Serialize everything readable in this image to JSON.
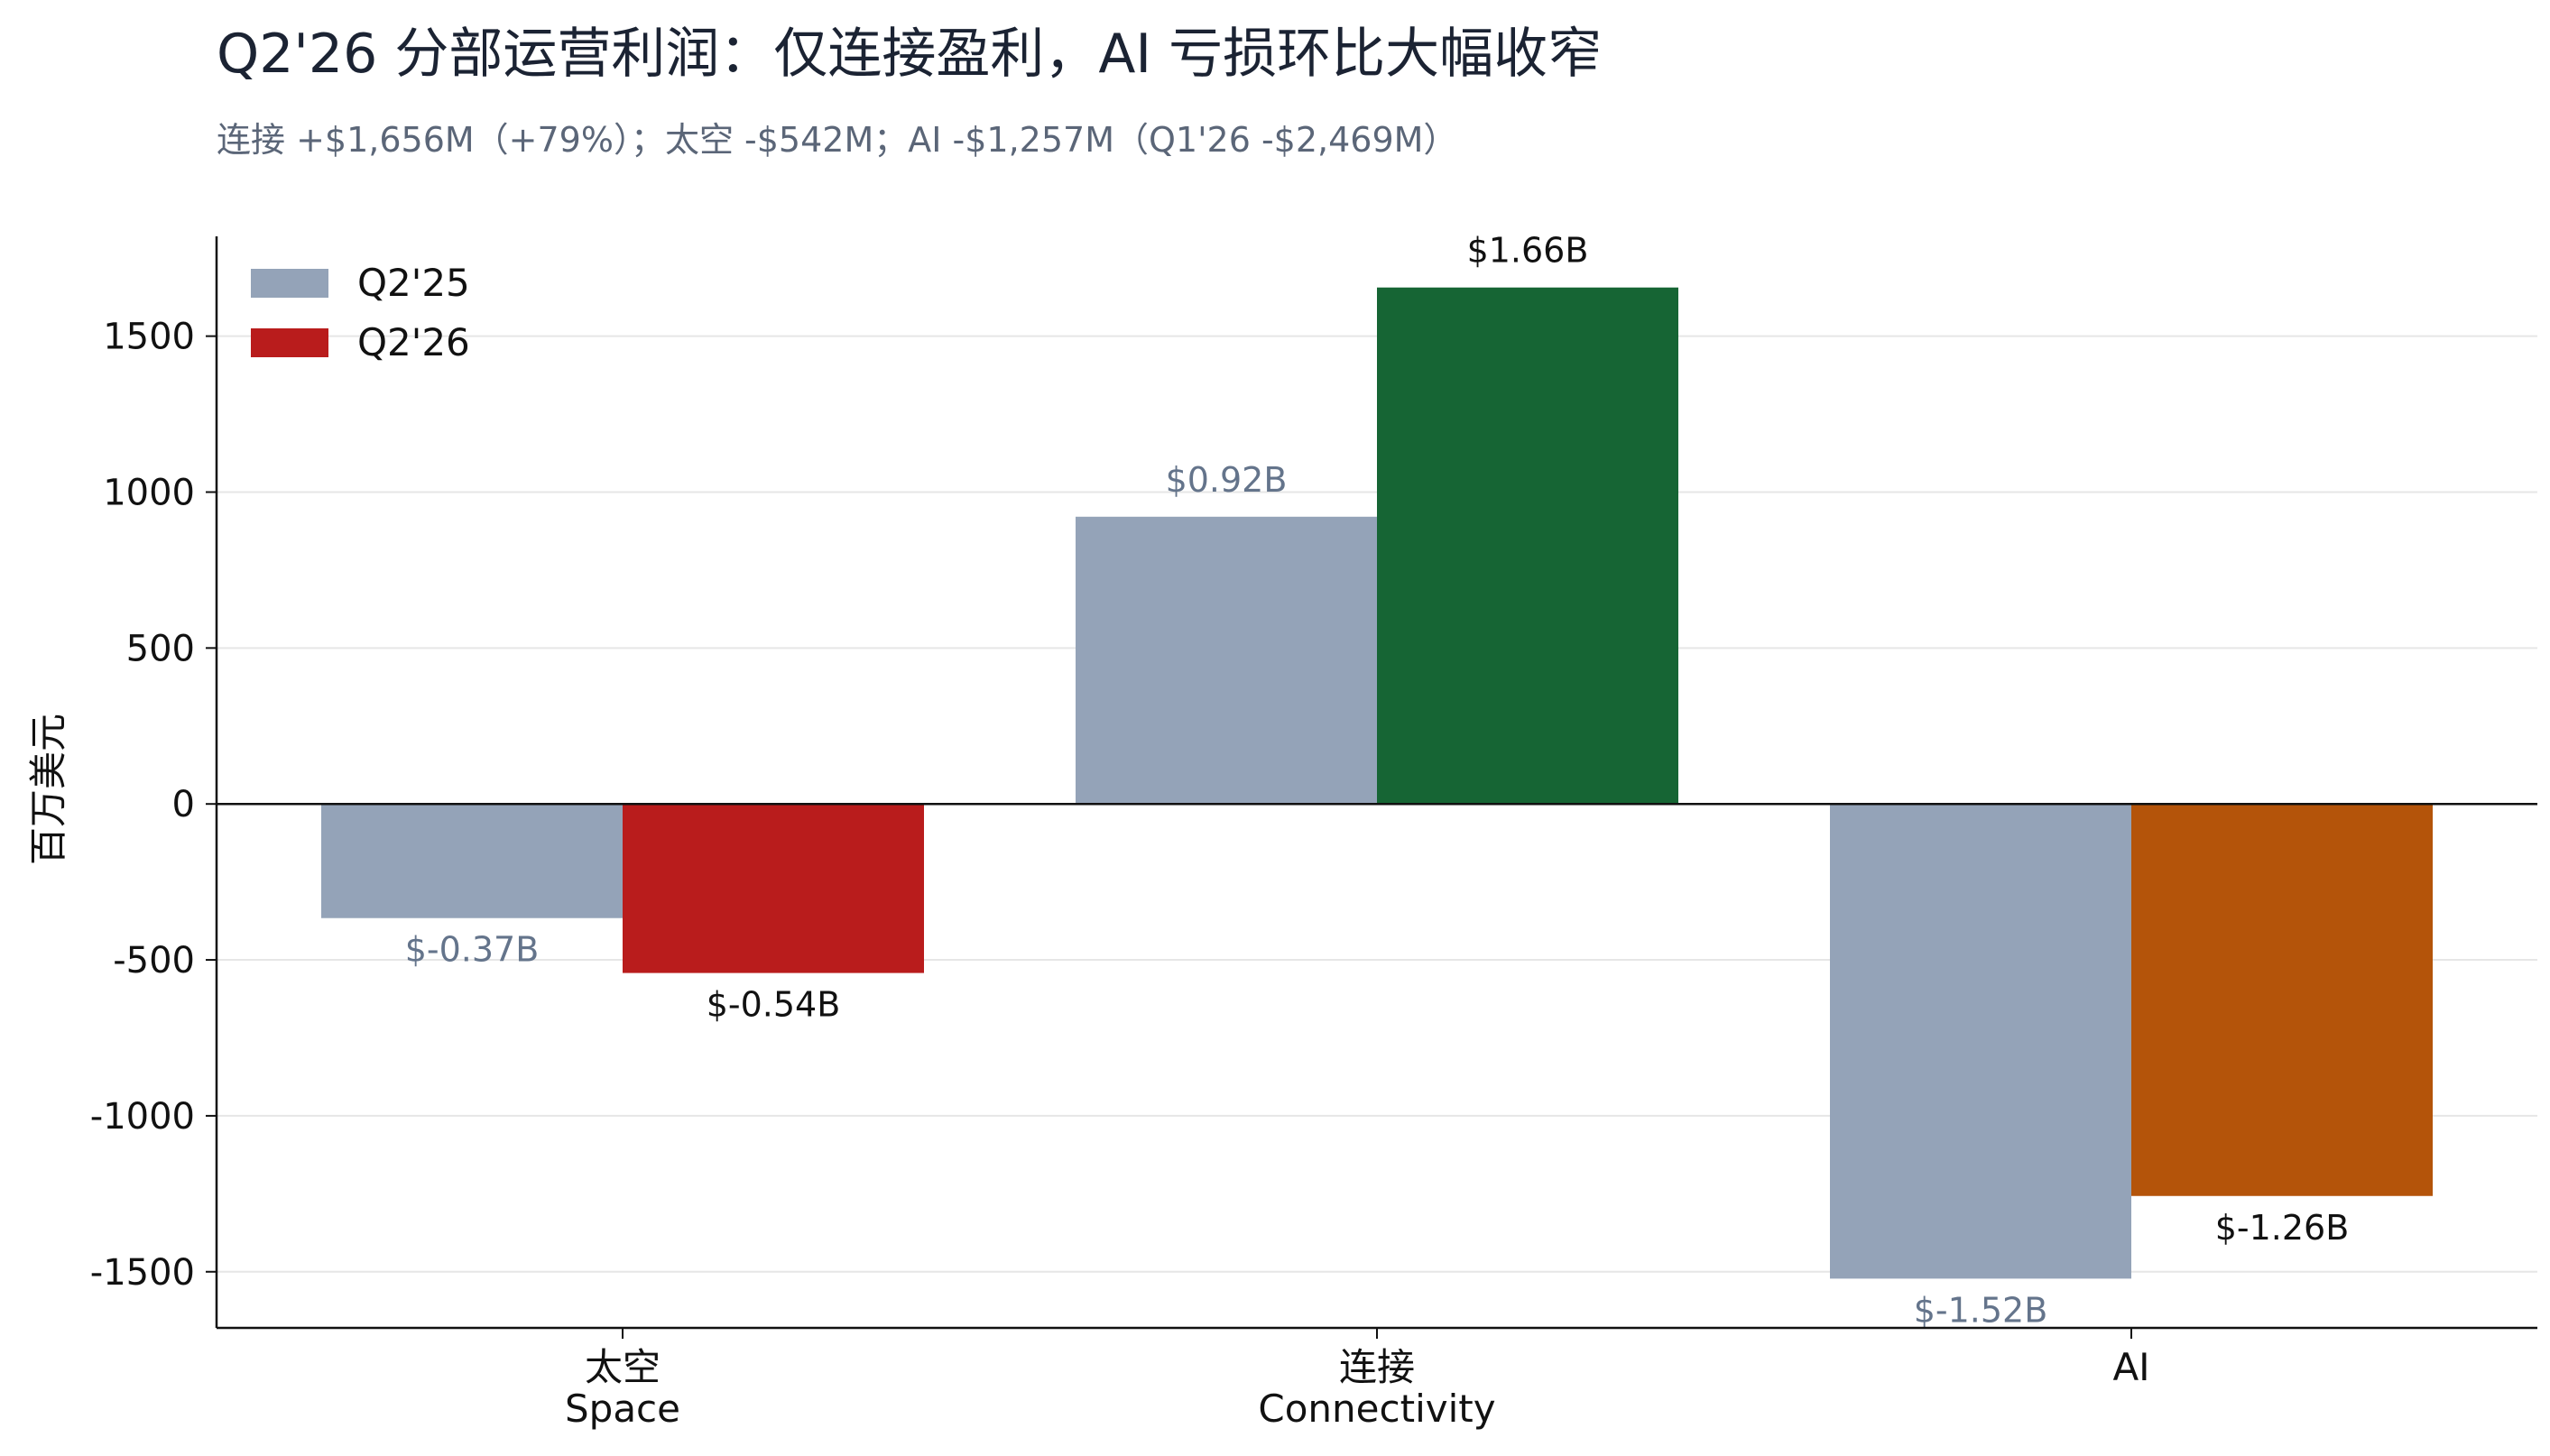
{
  "chart_data": {
    "type": "bar",
    "title": "Q2'26 分部运营利润：仅连接盈利，AI 亏损环比大幅收窄",
    "subtitle": "连接 +$1,656M（+79%）；太空 -$542M；AI -$1,257M（Q1'26 -$2,469M）",
    "ylabel": "百万美元",
    "ylim": [
      -1680,
      1820
    ],
    "yticks": [
      -1500,
      -1000,
      -500,
      0,
      500,
      1000,
      1500
    ],
    "grid": "horizontal",
    "legend_position": "top-left",
    "categories": [
      {
        "zh": "太空",
        "en": "Space"
      },
      {
        "zh": "连接",
        "en": "Connectivity"
      },
      {
        "zh": "AI",
        "en": ""
      }
    ],
    "series": [
      {
        "name": "Q2'25",
        "values": [
          -366,
          921,
          -1522
        ],
        "labels": [
          "$-0.37B",
          "$0.92B",
          "$-1.52B"
        ],
        "colors": [
          "#94a3b8",
          "#94a3b8",
          "#94a3b8"
        ],
        "label_color": "#64748b",
        "legend_color": "#94a3b8"
      },
      {
        "name": "Q2'26",
        "values": [
          -542,
          1656,
          -1257
        ],
        "labels": [
          "$-0.54B",
          "$1.66B",
          "$-1.26B"
        ],
        "colors": [
          "#b91c1c",
          "#166534",
          "#b4540a"
        ],
        "label_color": "#111111",
        "legend_color": "#b91c1c"
      }
    ]
  }
}
